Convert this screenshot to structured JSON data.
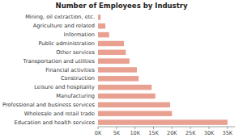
{
  "chart_data": {
    "type": "bar",
    "orientation": "horizontal",
    "title": "Number of Employees by Industry",
    "categories": [
      "Mining, oil extraction, etc.",
      "Agriculture and related",
      "Information",
      "Public administration",
      "Other services",
      "Transportation and utilities",
      "Financial activities",
      "Construction",
      "Leisure and hospitality",
      "Manufacturing",
      "Professional and business services",
      "Wholesale and retail trade",
      "Education and health services"
    ],
    "values": [
      700,
      2000,
      3000,
      7000,
      7500,
      8500,
      10500,
      11000,
      14500,
      15500,
      19500,
      20000,
      35000
    ],
    "color": "#e8a090",
    "xlim": [
      0,
      37000
    ],
    "xticks": [
      {
        "value": 0,
        "label": "0K"
      },
      {
        "value": 5000,
        "label": "5K"
      },
      {
        "value": 10000,
        "label": "10K"
      },
      {
        "value": 15000,
        "label": "15K"
      },
      {
        "value": 20000,
        "label": "20K"
      },
      {
        "value": 25000,
        "label": "25K"
      },
      {
        "value": 30000,
        "label": "30K"
      },
      {
        "value": 35000,
        "label": "35K"
      }
    ],
    "grid": false
  }
}
